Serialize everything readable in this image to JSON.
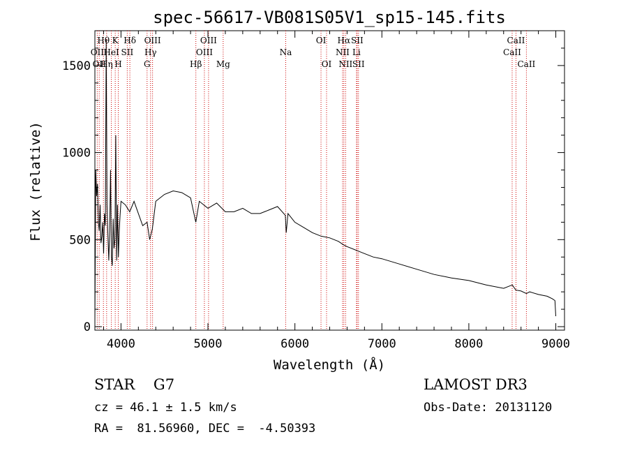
{
  "chart_data": {
    "type": "line",
    "title": "spec-56617-VB081S05V1_sp15-145.fits",
    "xlabel": "Wavelength (Å)",
    "ylabel": "Flux (relative)",
    "xlim": [
      3700,
      9100
    ],
    "ylim": [
      -20,
      1700
    ],
    "xticks": [
      4000,
      5000,
      6000,
      7000,
      8000,
      9000
    ],
    "xtick_labels": [
      "4000",
      "5000",
      "6000",
      "7000",
      "8000",
      "9000"
    ],
    "yticks": [
      0,
      500,
      1000,
      1500
    ],
    "ytick_labels": [
      "0",
      "500",
      "1000",
      "1500"
    ],
    "grid": false,
    "series": [
      {
        "name": "flux",
        "x": [
          3700,
          3710,
          3720,
          3730,
          3740,
          3750,
          3760,
          3770,
          3780,
          3790,
          3800,
          3810,
          3820,
          3830,
          3840,
          3850,
          3860,
          3870,
          3880,
          3890,
          3900,
          3910,
          3920,
          3930,
          3940,
          3950,
          3960,
          3970,
          3980,
          3990,
          4000,
          4050,
          4100,
          4150,
          4200,
          4250,
          4300,
          4330,
          4360,
          4400,
          4500,
          4600,
          4700,
          4800,
          4860,
          4900,
          5000,
          5100,
          5200,
          5300,
          5400,
          5500,
          5600,
          5700,
          5800,
          5890,
          5900,
          5920,
          6000,
          6100,
          6200,
          6300,
          6400,
          6500,
          6560,
          6600,
          6700,
          6800,
          6900,
          7000,
          7200,
          7400,
          7600,
          7800,
          8000,
          8200,
          8400,
          8500,
          8540,
          8600,
          8662,
          8700,
          8800,
          8900,
          8960,
          8990,
          9000
        ],
        "y": [
          30,
          900,
          750,
          820,
          600,
          550,
          700,
          480,
          520,
          600,
          420,
          650,
          580,
          1650,
          700,
          520,
          380,
          550,
          900,
          400,
          350,
          620,
          450,
          500,
          1100,
          380,
          700,
          400,
          550,
          640,
          720,
          700,
          660,
          720,
          650,
          580,
          600,
          500,
          560,
          720,
          760,
          780,
          770,
          740,
          600,
          720,
          680,
          710,
          660,
          660,
          680,
          650,
          650,
          670,
          690,
          640,
          540,
          650,
          600,
          570,
          540,
          520,
          510,
          490,
          470,
          460,
          440,
          420,
          400,
          390,
          360,
          330,
          300,
          280,
          265,
          240,
          220,
          240,
          210,
          205,
          190,
          200,
          185,
          175,
          160,
          150,
          60
        ]
      }
    ],
    "lines": [
      {
        "wavelength": 3727,
        "label": "OII",
        "row": 2
      },
      {
        "wavelength": 3750,
        "label": "OII",
        "row": 3
      },
      {
        "wavelength": 3798,
        "label": "Hθ",
        "row": 1
      },
      {
        "wavelength": 3835,
        "label": "Hη",
        "row": 3
      },
      {
        "wavelength": 3889,
        "label": "HeI",
        "row": 2
      },
      {
        "wavelength": 3934,
        "label": "K",
        "row": 1
      },
      {
        "wavelength": 3969,
        "label": "H",
        "row": 3
      },
      {
        "wavelength": 4072,
        "label": "SII",
        "row": 2
      },
      {
        "wavelength": 4102,
        "label": "Hδ",
        "row": 1
      },
      {
        "wavelength": 4300,
        "label": "G",
        "row": 3
      },
      {
        "wavelength": 4340,
        "label": "Hγ",
        "row": 2
      },
      {
        "wavelength": 4363,
        "label": "OIII",
        "row": 1
      },
      {
        "wavelength": 4861,
        "label": "Hβ",
        "row": 3
      },
      {
        "wavelength": 4959,
        "label": "OIII",
        "row": 2
      },
      {
        "wavelength": 5007,
        "label": "OIII",
        "row": 1
      },
      {
        "wavelength": 5175,
        "label": "Mg",
        "row": 3
      },
      {
        "wavelength": 5894,
        "label": "Na",
        "row": 2
      },
      {
        "wavelength": 6300,
        "label": "OI",
        "row": 1
      },
      {
        "wavelength": 6364,
        "label": "OI",
        "row": 3
      },
      {
        "wavelength": 6548,
        "label": "NII",
        "row": 2
      },
      {
        "wavelength": 6563,
        "label": "Hα",
        "row": 1
      },
      {
        "wavelength": 6583,
        "label": "NII",
        "row": 3
      },
      {
        "wavelength": 6708,
        "label": "Li",
        "row": 2
      },
      {
        "wavelength": 6716,
        "label": "SII",
        "row": 1
      },
      {
        "wavelength": 6731,
        "label": "SII",
        "row": 3
      },
      {
        "wavelength": 8498,
        "label": "CaII",
        "row": 2
      },
      {
        "wavelength": 8542,
        "label": "CaII",
        "row": 1
      },
      {
        "wavelength": 8662,
        "label": "CaII",
        "row": 3
      }
    ],
    "line_color": "#cc0000"
  },
  "info": {
    "class_line": "STAR    G7",
    "cz_line": "cz = 46.1 ± 1.5 km/s",
    "radec_line": "RA =  81.56960, DEC =  -4.50393",
    "survey": "LAMOST DR3",
    "obs_date": "Obs-Date: 20131120"
  }
}
